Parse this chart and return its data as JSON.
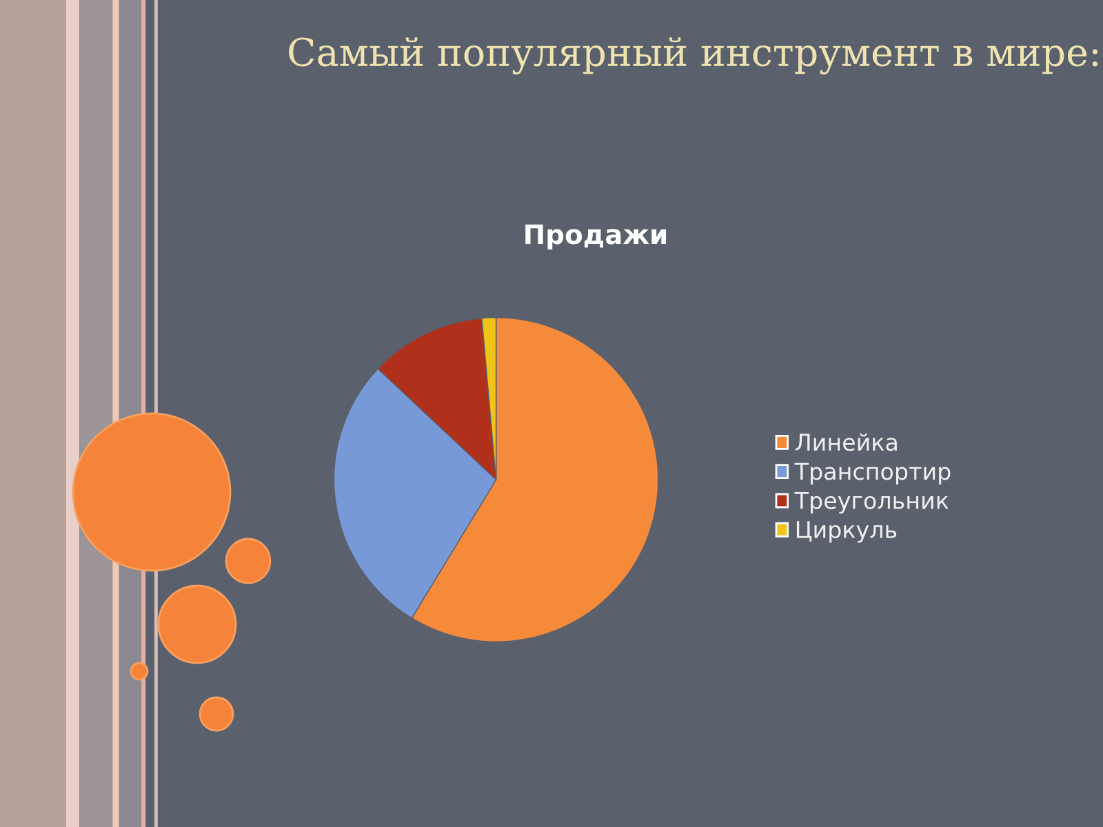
{
  "chart_data": {
    "type": "pie",
    "title": "Самый популярный инструмент в мире:",
    "subtitle": "Продажи",
    "categories": [
      "Линейка",
      "Транспортир",
      "Треугольник",
      "Циркуль"
    ],
    "values": [
      58.7,
      28.3,
      11.6,
      1.4
    ],
    "colors": [
      "#f58a3a",
      "#7799d8",
      "#b0301c",
      "#f0c419"
    ],
    "legend": "right"
  }
}
